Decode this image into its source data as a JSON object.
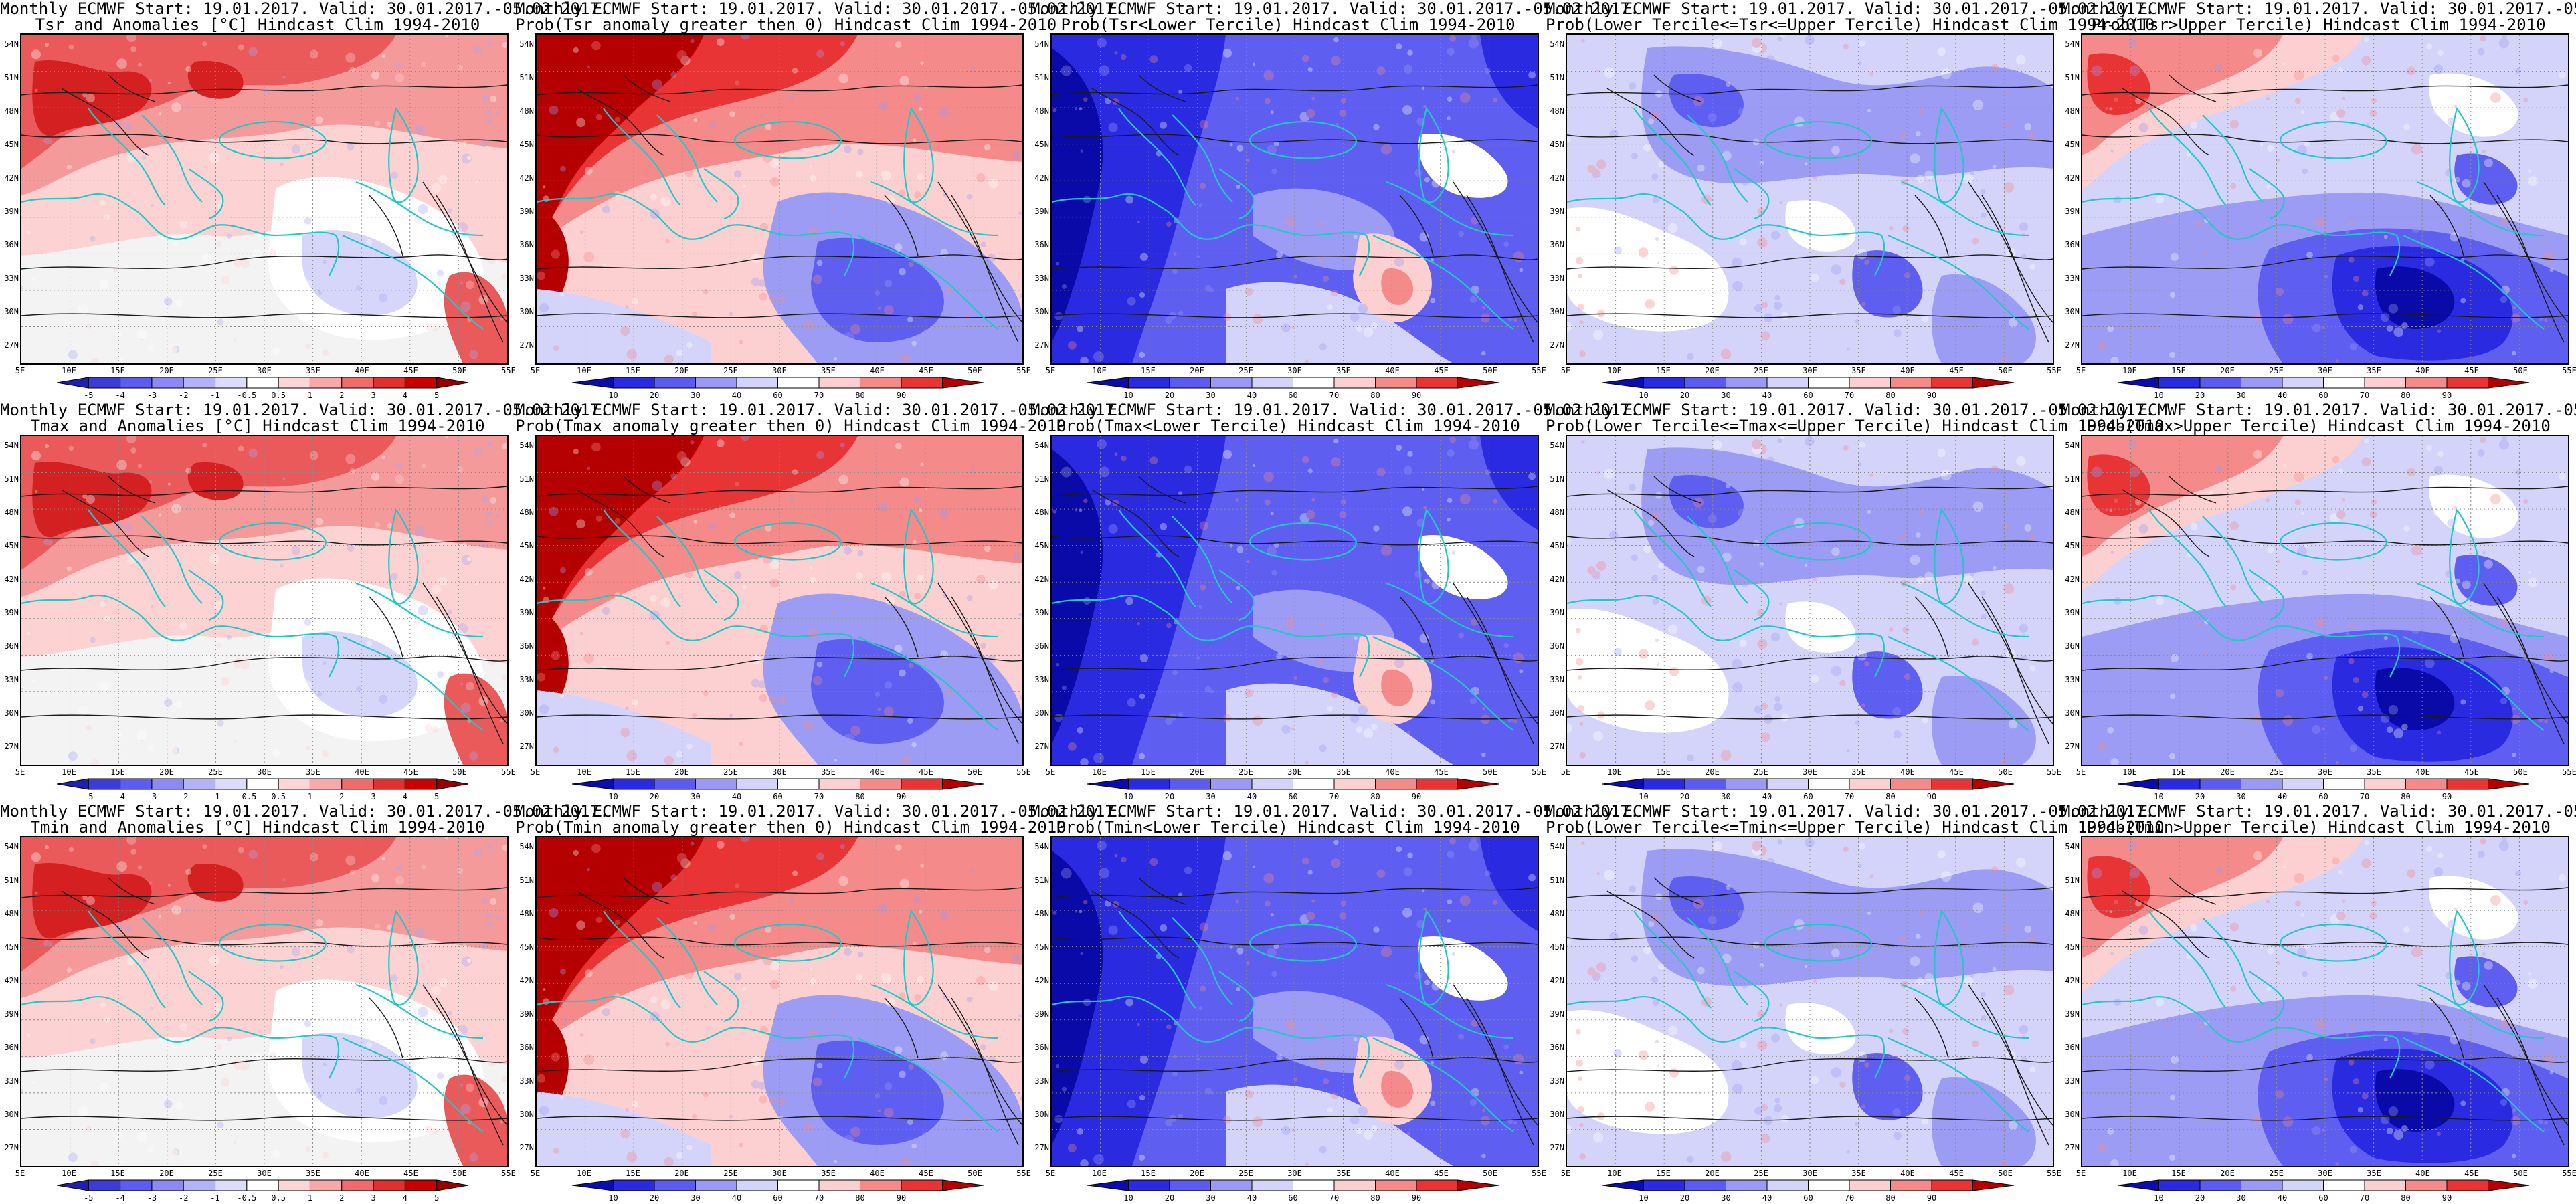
{
  "header": {
    "prefix": "Monthly ECMWF Start: 19.01.2017. Valid: 30.01.2017.-05.02.2017."
  },
  "axes": {
    "lat_labels": [
      "54N",
      "51N",
      "48N",
      "45N",
      "42N",
      "39N",
      "36N",
      "33N",
      "30N",
      "27N"
    ],
    "lon_labels": [
      "5E",
      "10E",
      "15E",
      "20E",
      "25E",
      "30E",
      "35E",
      "40E",
      "45E",
      "50E",
      "55E"
    ]
  },
  "colorbars": {
    "anomaly": {
      "ticks": [
        "-5",
        "-4",
        "-3",
        "-2",
        "-1",
        "-0.5",
        "0.5",
        "1",
        "2",
        "3",
        "4",
        "5"
      ],
      "colors": [
        "#1f1fb2",
        "#3b3bd6",
        "#5c5cf0",
        "#8a8af2",
        "#b3b3f7",
        "#dcdcfc",
        "#ffffff",
        "#fcd6d6",
        "#f7a8a8",
        "#f06c6c",
        "#e03030",
        "#c80000",
        "#960000"
      ]
    },
    "probability": {
      "ticks": [
        "10",
        "20",
        "30",
        "40",
        "60",
        "70",
        "80",
        "90"
      ],
      "colors": [
        "#0b0bb0",
        "#2a2ae0",
        "#5b5bf0",
        "#9a9af4",
        "#d4d4fa",
        "#ffffff",
        "#fcd0d0",
        "#f58a8a",
        "#e83434",
        "#b40000"
      ]
    }
  },
  "panels": [
    {
      "title": "Tsr and Anomalies [°C] Hindcast Clim 1994-2010",
      "scale": "anomaly",
      "pattern": "anom"
    },
    {
      "title": "Prob(Tsr anomaly greater then 0) Hindcast Clim 1994-2010",
      "scale": "probability",
      "pattern": "probpos"
    },
    {
      "title": "Prob(Tsr<Lower Tercile) Hindcast Clim 1994-2010",
      "scale": "probability",
      "pattern": "lower"
    },
    {
      "title": "Prob(Lower Tercile<=Tsr<=Upper Tercile) Hindcast Clim 1994-2010",
      "scale": "probability",
      "pattern": "middle"
    },
    {
      "title": "Prob(Tsr>Upper Tercile) Hindcast Clim 1994-2010",
      "scale": "probability",
      "pattern": "upper"
    },
    {
      "title": "Tmax and Anomalies [°C] Hindcast Clim 1994-2010",
      "scale": "anomaly",
      "pattern": "anom"
    },
    {
      "title": "Prob(Tmax anomaly greater then 0) Hindcast Clim 1994-2010",
      "scale": "probability",
      "pattern": "probpos"
    },
    {
      "title": "Prob(Tmax<Lower Tercile) Hindcast Clim 1994-2010",
      "scale": "probability",
      "pattern": "lower"
    },
    {
      "title": "Prob(Lower Tercile<=Tmax<=Upper Tercile) Hindcast Clim 1994-2010",
      "scale": "probability",
      "pattern": "middle"
    },
    {
      "title": "Prob(Tmax>Upper Tercile) Hindcast Clim 1994-2010",
      "scale": "probability",
      "pattern": "upper"
    },
    {
      "title": "Tmin and Anomalies [°C] Hindcast Clim 1994-2010",
      "scale": "anomaly",
      "pattern": "anom"
    },
    {
      "title": "Prob(Tmin anomaly greater then 0) Hindcast Clim 1994-2010",
      "scale": "probability",
      "pattern": "probpos"
    },
    {
      "title": "Prob(Tmin<Lower Tercile) Hindcast Clim 1994-2010",
      "scale": "probability",
      "pattern": "lower"
    },
    {
      "title": "Prob(Lower Tercile<=Tmin<=Upper Tercile) Hindcast Clim 1994-2010",
      "scale": "probability",
      "pattern": "middle"
    },
    {
      "title": "Prob(Tmin>Upper Tercile) Hindcast Clim 1994-2010",
      "scale": "probability",
      "pattern": "upper"
    }
  ]
}
